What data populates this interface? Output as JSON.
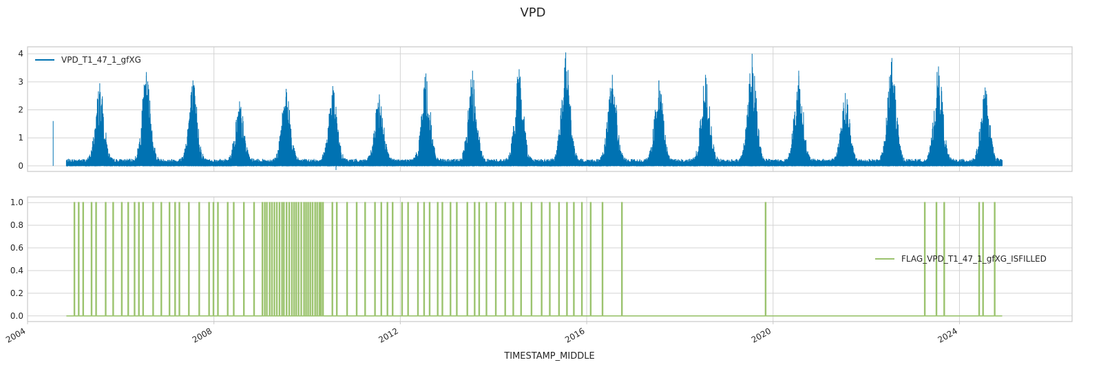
{
  "figure": {
    "title": "VPD"
  },
  "chart_data": [
    {
      "type": "line",
      "title": "",
      "xlabel": "",
      "ylabel": "",
      "ylim": [
        -0.2,
        4.25
      ],
      "yticks": [
        "0",
        "1",
        "2",
        "3",
        "4"
      ],
      "grid": true,
      "legend_position": "top-left",
      "series": [
        {
          "name": "VPD_T1_47_1_gfXG",
          "color": "#0072b2",
          "x_range": [
            "2004-11",
            "2024-12"
          ],
          "yearly_peaks": [
            {
              "year": 2004,
              "peak": 1.6
            },
            {
              "year": 2005,
              "peak": 2.95
            },
            {
              "year": 2006,
              "peak": 3.35
            },
            {
              "year": 2007,
              "peak": 3.05
            },
            {
              "year": 2008,
              "peak": 2.3
            },
            {
              "year": 2009,
              "peak": 2.75
            },
            {
              "year": 2010,
              "peak": 2.85
            },
            {
              "year": 2011,
              "peak": 2.55
            },
            {
              "year": 2012,
              "peak": 3.3
            },
            {
              "year": 2013,
              "peak": 3.4
            },
            {
              "year": 2014,
              "peak": 3.45
            },
            {
              "year": 2015,
              "peak": 4.05
            },
            {
              "year": 2016,
              "peak": 3.25
            },
            {
              "year": 2017,
              "peak": 3.05
            },
            {
              "year": 2018,
              "peak": 3.25
            },
            {
              "year": 2019,
              "peak": 4.0
            },
            {
              "year": 2020,
              "peak": 3.4
            },
            {
              "year": 2021,
              "peak": 2.6
            },
            {
              "year": 2022,
              "peak": 3.85
            },
            {
              "year": 2023,
              "peak": 3.55
            },
            {
              "year": 2024,
              "peak": 2.8
            }
          ],
          "min_value": -0.15
        }
      ]
    },
    {
      "type": "line",
      "title": "",
      "xlabel": "TIMESTAMP_MIDDLE",
      "ylabel": "",
      "ylim": [
        -0.05,
        1.05
      ],
      "yticks": [
        "0.0",
        "0.2",
        "0.4",
        "0.6",
        "0.8",
        "1.0"
      ],
      "grid": true,
      "legend_position": "center-right",
      "series": [
        {
          "name": "FLAG_VPD_T1_47_1_gfXG_ISFILLED",
          "color": "#9bc36e",
          "x_range": [
            "2004-11",
            "2024-12"
          ],
          "values_range": [
            0,
            1
          ],
          "dense_flag_period": [
            "2005-01",
            "2016-03"
          ],
          "isolated_flag_events": [
            "2016-05",
            "2016-10",
            "2019-11",
            "2023-04",
            "2023-07",
            "2023-09",
            "2024-06",
            "2024-07",
            "2024-10"
          ]
        }
      ]
    }
  ],
  "xaxis": {
    "ticks": [
      "2004",
      "2008",
      "2012",
      "2016",
      "2020",
      "2024"
    ],
    "range": [
      "2004-01",
      "2026-06"
    ]
  }
}
